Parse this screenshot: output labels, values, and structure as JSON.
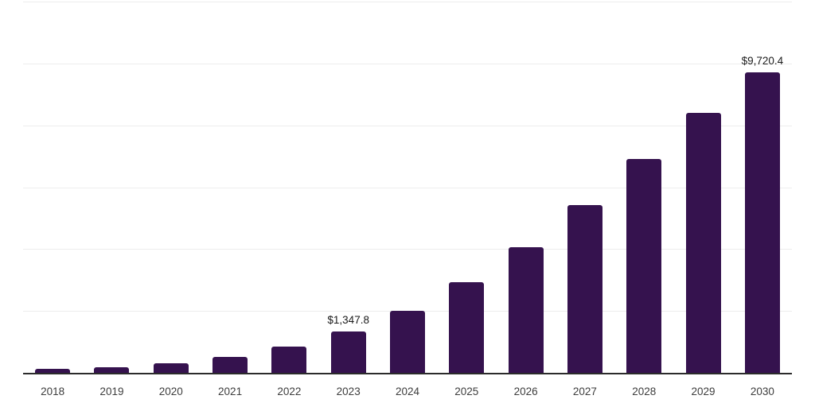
{
  "chart_data": {
    "type": "bar",
    "title": "",
    "xlabel": "",
    "ylabel": "",
    "categories": [
      "2018",
      "2019",
      "2020",
      "2021",
      "2022",
      "2023",
      "2024",
      "2025",
      "2026",
      "2027",
      "2028",
      "2029",
      "2030"
    ],
    "values": [
      130,
      185,
      300,
      505,
      850,
      1347.8,
      2000,
      2920,
      4060,
      5420,
      6905,
      8395,
      9720.4
    ],
    "data_labels": [
      {
        "category": "2023",
        "text": "$1,347.8"
      },
      {
        "category": "2030",
        "text": "$9,720.4"
      }
    ],
    "ylim": [
      0,
      12000
    ],
    "gridline_interval": 2000,
    "grid": "horizontal-only",
    "y_tick_labels": "none",
    "legend_position": "none",
    "colors": {
      "bar": "#35124e",
      "gridline": "#ededed",
      "axis_line": "#2b2b2b",
      "data_label_text": "#1a1a1a",
      "tick_label_text": "#3d3d3d",
      "background": "#ffffff"
    }
  }
}
